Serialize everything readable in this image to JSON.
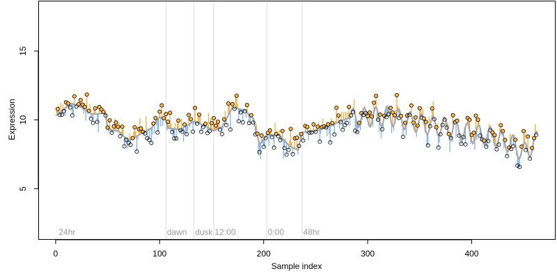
{
  "chart_data": {
    "type": "scatter",
    "title": "",
    "xlabel": "Sample index",
    "ylabel": "Expression",
    "xlim": [
      -16,
      480
    ],
    "ylim": [
      1.3,
      18.6
    ],
    "xticks": [
      0,
      100,
      200,
      300,
      400
    ],
    "yticks": [
      5,
      10,
      15
    ],
    "grid": false,
    "legend": "none",
    "colors": {
      "point_stroke": "#000000",
      "point_fill": "#ffb84d",
      "line": "#a8a8a8",
      "residual_up": "#f2a52b",
      "residual_down": "#7aaee8",
      "phase_line": "#dcdcdc",
      "phase_label": "#9a9a9a"
    },
    "phase_markers": [
      {
        "x": 106,
        "label": ""
      },
      {
        "x": 133,
        "label": ""
      },
      {
        "x": 152,
        "label": ""
      },
      {
        "x": 203,
        "label": ""
      },
      {
        "x": 237,
        "label": ""
      }
    ],
    "phase_labels": [
      {
        "x": 3,
        "label": "24hr"
      },
      {
        "x": 107,
        "label": "dawn"
      },
      {
        "x": 134,
        "label": "dusk"
      },
      {
        "x": 153,
        "label": "12:00"
      },
      {
        "x": 204,
        "label": "0:00"
      },
      {
        "x": 238,
        "label": "48hr"
      }
    ],
    "anchors": [
      [
        0,
        10.3
      ],
      [
        15,
        11.2
      ],
      [
        25,
        10.9
      ],
      [
        35,
        10.4
      ],
      [
        48,
        10.5
      ],
      [
        50,
        9.3
      ],
      [
        60,
        9.2
      ],
      [
        70,
        8.5
      ],
      [
        80,
        8.9
      ],
      [
        92,
        9.4
      ],
      [
        100,
        10.2
      ],
      [
        106,
        10.0
      ],
      [
        108,
        9.4
      ],
      [
        120,
        9.3
      ],
      [
        133,
        9.9
      ],
      [
        143,
        9.6
      ],
      [
        152,
        9.2
      ],
      [
        160,
        9.5
      ],
      [
        170,
        10.9
      ],
      [
        182,
        10.7
      ],
      [
        190,
        10.1
      ],
      [
        196,
        8.2
      ],
      [
        203,
        8.9
      ],
      [
        215,
        8.9
      ],
      [
        225,
        8.1
      ],
      [
        233,
        7.8
      ],
      [
        237,
        9.1
      ],
      [
        250,
        9.2
      ],
      [
        262,
        9.5
      ],
      [
        280,
        10.1
      ],
      [
        300,
        10.2
      ],
      [
        320,
        10.3
      ],
      [
        340,
        9.9
      ],
      [
        360,
        9.6
      ],
      [
        380,
        9.4
      ],
      [
        400,
        9.0
      ],
      [
        420,
        8.8
      ],
      [
        440,
        8.2
      ],
      [
        450,
        7.6
      ],
      [
        463,
        8.5
      ]
    ],
    "n_points": 463,
    "oscillation": {
      "start": 283,
      "period": 11,
      "amplitude": 0.7
    }
  }
}
